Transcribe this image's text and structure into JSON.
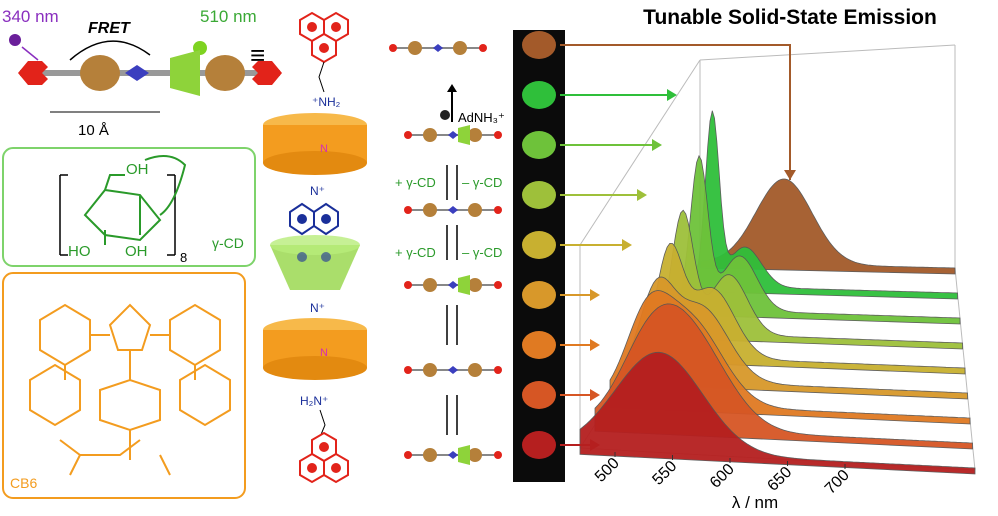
{
  "fret_scheme": {
    "excitation": "340 nm",
    "process": "FRET",
    "emission": "510 nm",
    "equivalence": "≡",
    "distance": "10 Å"
  },
  "gamma_cd": {
    "hydroxyls": [
      "OH",
      "HO",
      "OH"
    ],
    "repeat": "8",
    "label": "γ-CD"
  },
  "cb6": {
    "label": "CB6"
  },
  "rotaxane": {
    "top_amine": "⁺NH₂",
    "bottom_amine": "H₂N⁺",
    "nitrogens": [
      "N",
      "N⁺",
      "N⁺",
      "N"
    ]
  },
  "switching": {
    "guest": "AdNH₃⁺",
    "add": [
      "+ γ-CD",
      "+ γ-CD"
    ],
    "remove": [
      "– γ-CD",
      "– γ-CD"
    ]
  },
  "spectra": {
    "title": "Tunable Solid-State Emission",
    "x_label": "λ / nm",
    "x_ticks": [
      500,
      550,
      600,
      650,
      700
    ]
  }
}
